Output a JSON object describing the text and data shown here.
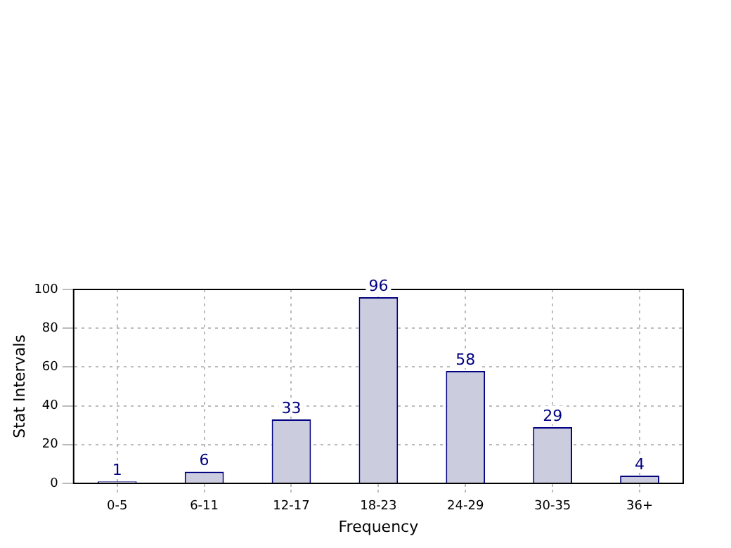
{
  "chart_data": {
    "type": "bar",
    "xlabel": "Frequency",
    "ylabel": "Stat Intervals",
    "categories": [
      "0-5",
      "6-11",
      "12-17",
      "18-23",
      "24-29",
      "30-35",
      "36+"
    ],
    "values": [
      1,
      6,
      33,
      96,
      58,
      29,
      4
    ],
    "color": "#ccccdf",
    "ylim": [
      0,
      100
    ],
    "yticks": [
      0,
      20,
      40,
      60,
      80,
      100
    ],
    "grid": true,
    "data_labels": true
  }
}
